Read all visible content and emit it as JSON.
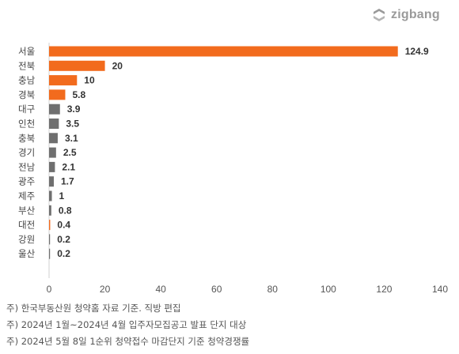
{
  "brand": {
    "logo_text": "zigbang"
  },
  "colors": {
    "highlight": "#f26b1d",
    "default": "#6f6f6f",
    "axis": "#d0d0d0"
  },
  "chart_data": {
    "type": "bar",
    "orientation": "horizontal",
    "categories": [
      "서울",
      "전북",
      "충남",
      "경북",
      "대구",
      "인천",
      "충북",
      "경기",
      "전남",
      "광주",
      "제주",
      "부산",
      "대전",
      "강원",
      "울산"
    ],
    "values": [
      124.9,
      20,
      10,
      5.8,
      3.9,
      3.5,
      3.1,
      2.5,
      2.1,
      1.7,
      1,
      0.8,
      0.4,
      0.2,
      0.2
    ],
    "highlighted": [
      "서울",
      "전북",
      "충남",
      "경북",
      "대전"
    ],
    "value_labels": [
      "124.9",
      "20",
      "10",
      "5.8",
      "3.9",
      "3.5",
      "3.1",
      "2.5",
      "2.1",
      "1.7",
      "1",
      "0.8",
      "0.4",
      "0.2",
      "0.2"
    ],
    "xticks": [
      0,
      20,
      40,
      60,
      80,
      100,
      120,
      140
    ],
    "xlim": [
      0,
      140
    ],
    "title": "",
    "xlabel": "",
    "ylabel": "",
    "grid": false
  },
  "notes": [
    "주) 한국부동산원 청약홈 자료 기준. 직방 편집",
    "주) 2024년 1월~2024년 4월 입주자모집공고 발표 단지 대상",
    "주) 2024년 5월 8일 1순위 청약접수 마감단지 기준 청약경쟁률"
  ]
}
